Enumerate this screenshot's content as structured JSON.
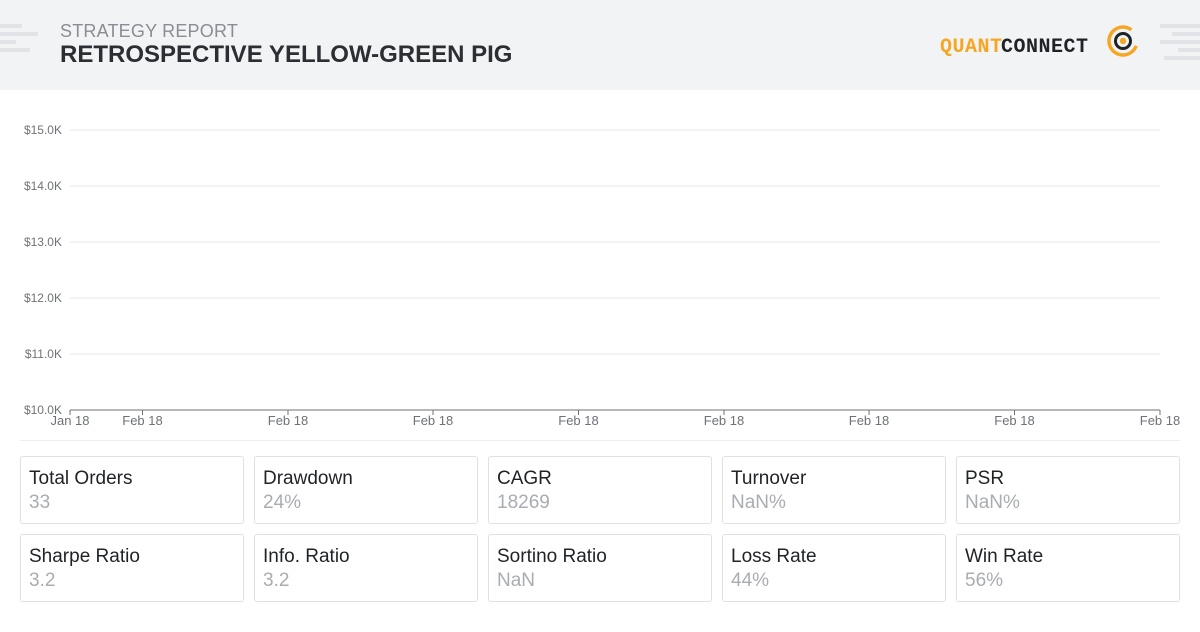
{
  "header": {
    "subtitle": "STRATEGY REPORT",
    "title": "RETROSPECTIVE YELLOW-GREEN PIG",
    "logo": {
      "part1": "QUANT",
      "part2": "CONNECT",
      "accent_color": "#f5a623"
    }
  },
  "chart_data": {
    "type": "line",
    "title": "",
    "xlabel": "",
    "ylabel": "",
    "y_ticks": [
      "$10.0K",
      "$11.0K",
      "$12.0K",
      "$13.0K",
      "$14.0K",
      "$15.0K"
    ],
    "ylim": [
      10000,
      15000
    ],
    "x_ticks": [
      "Jan 18",
      "Feb 18",
      "Feb 18",
      "Feb 18",
      "Feb 18",
      "Feb 18",
      "Feb 18",
      "Feb 18",
      "Feb 18"
    ],
    "series": [],
    "grid": true
  },
  "stats": [
    {
      "label": "Total Orders",
      "value": "33"
    },
    {
      "label": "Drawdown",
      "value": "24%"
    },
    {
      "label": "CAGR",
      "value": "18269"
    },
    {
      "label": "Turnover",
      "value": "NaN%"
    },
    {
      "label": "PSR",
      "value": "NaN%"
    },
    {
      "label": "Sharpe Ratio",
      "value": "3.2"
    },
    {
      "label": "Info. Ratio",
      "value": "3.2"
    },
    {
      "label": "Sortino Ratio",
      "value": "NaN"
    },
    {
      "label": "Loss Rate",
      "value": "44%"
    },
    {
      "label": "Win Rate",
      "value": "56%"
    }
  ]
}
